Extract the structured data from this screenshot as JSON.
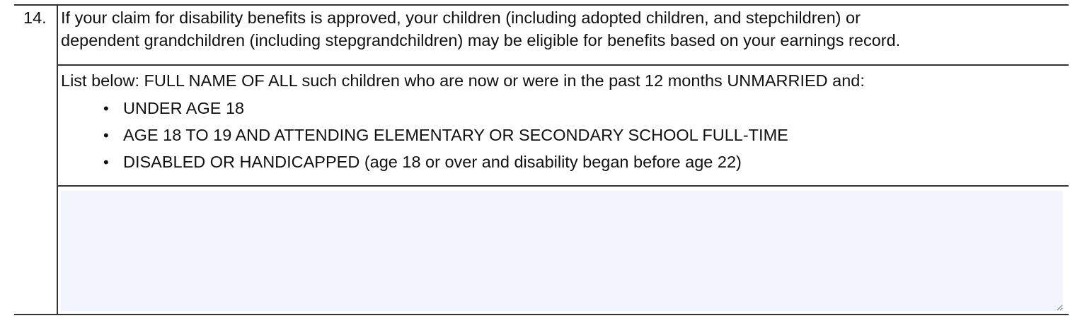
{
  "question": {
    "number": "14.",
    "intro_lines": [
      "If your claim for disability benefits is approved, your children (including adopted children, and stepchildren) or",
      "dependent grandchildren (including stepgrandchildren) may be eligible for benefits based on your earnings record."
    ],
    "list_instruction": "List below: FULL NAME OF ALL such children who are now or were in the past 12 months UNMARRIED and:",
    "criteria": [
      "UNDER AGE 18",
      "AGE 18 TO 19 AND ATTENDING ELEMENTARY OR SECONDARY SCHOOL FULL-TIME",
      "DISABLED OR HANDICAPPED (age 18 or over and disability began before age 22)"
    ],
    "bullet_char": "•",
    "children_names_value": ""
  },
  "colors": {
    "field_background": "#f2f5fd",
    "rule": "#333333"
  }
}
